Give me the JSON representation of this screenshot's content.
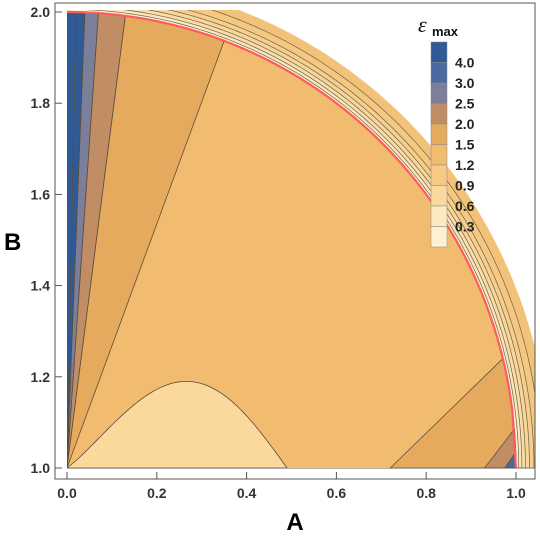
{
  "chart_data": {
    "type": "contour",
    "xlabel": "A",
    "ylabel": "B",
    "xlim": [
      0,
      1
    ],
    "ylim": [
      1,
      2
    ],
    "x_ticks": [
      "0.0",
      "0.2",
      "0.4",
      "0.6",
      "0.8",
      "1.0"
    ],
    "y_ticks": [
      "1.0",
      "1.2",
      "1.4",
      "1.6",
      "1.8",
      "2.0"
    ],
    "legend": {
      "title": "ε",
      "subscript": "max",
      "placement": "top-right",
      "levels": [
        {
          "label": "4.0",
          "color": "#2f5a96"
        },
        {
          "label": "3.0",
          "color": "#4a6aa0"
        },
        {
          "label": "2.5",
          "color": "#7c7f9a"
        },
        {
          "label": "2.0",
          "color": "#c08d65"
        },
        {
          "label": "1.5",
          "color": "#e6aa5e"
        },
        {
          "label": "1.2",
          "color": "#f2bc70"
        },
        {
          "label": "0.9",
          "color": "#f7c982"
        },
        {
          "label": "0.6",
          "color": "#fbd89c"
        },
        {
          "label": "0.3",
          "color": "#fce9bf"
        },
        {
          "label": "",
          "color": "#fdf1d2"
        }
      ]
    },
    "curves": {
      "boundary_color": "#ff5b5b",
      "left_wedges": [
        {
          "x_top": 0.0,
          "color": "#2f5a96"
        },
        {
          "x_top": 0.04,
          "color": "#7c7f9a"
        },
        {
          "x_top": 0.07,
          "color": "#c08d65"
        },
        {
          "x_top": 0.13,
          "color": "#e6aa5e"
        },
        {
          "x_top": 0.35,
          "color": "#f2bc70"
        }
      ],
      "right_wedges": [
        {
          "b_side": 1.24,
          "color": "#e6aa5e",
          "x_bottom": 0.72
        },
        {
          "b_side": 1.085,
          "color": "#c08d65",
          "x_bottom": 0.93
        },
        {
          "b_side": 1.035,
          "color": "#4a6aa0",
          "x_bottom": 0.975
        }
      ],
      "inner_lobe": {
        "x_end": 0.49,
        "b_peak": 1.19,
        "x_peak": 0.33,
        "color": "#fbd89c"
      },
      "outer_bands": [
        1.006,
        1.013,
        1.021,
        1.03,
        1.04,
        1.055
      ],
      "outer_band_colors": [
        "#f3c279",
        "#f5c882",
        "#f7ce8c",
        "#f8d598",
        "#fadda8",
        "#fce6bb",
        "#fdf1d2"
      ]
    }
  }
}
